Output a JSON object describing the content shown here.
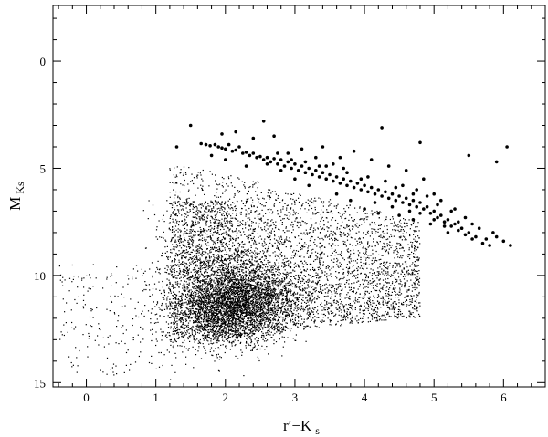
{
  "chart_data": {
    "type": "scatter",
    "title": "",
    "xlabel": "r′−K",
    "xlabel_sub": "s",
    "ylabel": "M",
    "ylabel_sub": "Ks",
    "xlim": [
      -0.48,
      6.6
    ],
    "ylim": [
      15.2,
      -2.6
    ],
    "y_inverted": true,
    "grid": false,
    "legend": "none",
    "x_ticks": [
      0,
      1,
      2,
      3,
      4,
      5,
      6
    ],
    "x_tick_labels": [
      "0",
      "1",
      "2",
      "3",
      "4",
      "5",
      "6"
    ],
    "y_ticks": [
      0,
      5,
      10,
      15
    ],
    "y_tick_labels": [
      "0",
      "5",
      "10",
      "15"
    ],
    "colors": {
      "points": "#000000",
      "axes": "#000000"
    },
    "series": [
      {
        "marker": "large-dot",
        "note_points": "foreground sequence of larger dots",
        "points": [
          [
            1.5,
            3.0
          ],
          [
            1.3,
            4.0
          ],
          [
            1.65,
            3.85
          ],
          [
            1.72,
            3.9
          ],
          [
            1.78,
            3.95
          ],
          [
            1.85,
            3.9
          ],
          [
            1.9,
            4.0
          ],
          [
            1.95,
            4.05
          ],
          [
            2.0,
            4.1
          ],
          [
            2.05,
            3.9
          ],
          [
            2.1,
            4.2
          ],
          [
            2.15,
            4.15
          ],
          [
            2.2,
            4.0
          ],
          [
            2.25,
            4.3
          ],
          [
            2.3,
            4.25
          ],
          [
            2.35,
            4.4
          ],
          [
            2.4,
            4.3
          ],
          [
            2.45,
            4.5
          ],
          [
            2.5,
            4.45
          ],
          [
            2.55,
            2.8
          ],
          [
            2.55,
            4.6
          ],
          [
            2.6,
            4.5
          ],
          [
            2.65,
            4.7
          ],
          [
            2.7,
            4.55
          ],
          [
            2.75,
            4.8
          ],
          [
            2.8,
            4.6
          ],
          [
            2.85,
            4.9
          ],
          [
            2.9,
            4.7
          ],
          [
            2.95,
            5.0
          ],
          [
            3.0,
            4.8
          ],
          [
            3.05,
            5.1
          ],
          [
            3.1,
            4.9
          ],
          [
            3.15,
            5.2
          ],
          [
            3.2,
            5.0
          ],
          [
            3.25,
            5.3
          ],
          [
            3.3,
            5.1
          ],
          [
            3.35,
            5.4
          ],
          [
            3.4,
            5.2
          ],
          [
            3.45,
            5.5
          ],
          [
            3.5,
            5.3
          ],
          [
            3.55,
            5.6
          ],
          [
            3.6,
            5.4
          ],
          [
            3.65,
            5.7
          ],
          [
            3.7,
            5.5
          ],
          [
            3.75,
            5.8
          ],
          [
            3.8,
            5.6
          ],
          [
            3.85,
            5.9
          ],
          [
            3.9,
            5.7
          ],
          [
            3.95,
            6.0
          ],
          [
            4.0,
            5.8
          ],
          [
            4.05,
            6.1
          ],
          [
            4.1,
            5.9
          ],
          [
            4.15,
            6.2
          ],
          [
            4.2,
            6.0
          ],
          [
            4.25,
            6.3
          ],
          [
            4.3,
            6.1
          ],
          [
            4.35,
            6.4
          ],
          [
            4.4,
            6.2
          ],
          [
            4.45,
            6.5
          ],
          [
            4.5,
            6.3
          ],
          [
            4.55,
            6.6
          ],
          [
            4.6,
            6.4
          ],
          [
            4.65,
            6.7
          ],
          [
            4.7,
            6.5
          ],
          [
            4.75,
            6.8
          ],
          [
            4.8,
            6.6
          ],
          [
            4.85,
            6.9
          ],
          [
            4.9,
            6.8
          ],
          [
            4.95,
            7.1
          ],
          [
            5.0,
            7.0
          ],
          [
            5.05,
            7.3
          ],
          [
            5.1,
            7.2
          ],
          [
            5.15,
            7.5
          ],
          [
            5.2,
            7.4
          ],
          [
            5.25,
            7.7
          ],
          [
            5.3,
            7.6
          ],
          [
            5.35,
            7.9
          ],
          [
            5.4,
            7.8
          ],
          [
            5.45,
            8.1
          ],
          [
            5.5,
            8.0
          ],
          [
            5.55,
            8.3
          ],
          [
            5.6,
            8.2
          ],
          [
            5.7,
            8.5
          ],
          [
            5.75,
            8.3
          ],
          [
            5.8,
            8.6
          ],
          [
            5.9,
            8.2
          ],
          [
            6.0,
            8.4
          ],
          [
            6.1,
            8.6
          ],
          [
            6.05,
            4.0
          ],
          [
            5.5,
            4.4
          ],
          [
            5.9,
            4.7
          ],
          [
            4.8,
            3.8
          ],
          [
            4.25,
            3.1
          ],
          [
            3.4,
            4.0
          ],
          [
            2.7,
            3.5
          ],
          [
            2.4,
            3.6
          ],
          [
            2.15,
            3.3
          ],
          [
            1.95,
            3.4
          ],
          [
            3.65,
            4.5
          ],
          [
            3.85,
            4.2
          ],
          [
            4.1,
            4.6
          ],
          [
            4.35,
            4.9
          ],
          [
            4.6,
            5.1
          ],
          [
            4.85,
            5.5
          ],
          [
            5.0,
            6.2
          ],
          [
            5.1,
            6.5
          ],
          [
            5.3,
            6.9
          ],
          [
            3.6,
            6.2
          ],
          [
            3.8,
            6.5
          ],
          [
            4.0,
            6.9
          ],
          [
            4.2,
            7.1
          ],
          [
            4.5,
            7.2
          ],
          [
            4.7,
            7.4
          ],
          [
            4.95,
            7.6
          ],
          [
            5.2,
            8.0
          ],
          [
            3.2,
            5.8
          ],
          [
            3.0,
            5.5
          ],
          [
            2.8,
            5.1
          ],
          [
            2.3,
            4.9
          ],
          [
            2.0,
            4.6
          ],
          [
            1.8,
            4.4
          ],
          [
            2.9,
            4.3
          ],
          [
            3.1,
            4.1
          ],
          [
            3.3,
            4.5
          ],
          [
            3.55,
            4.8
          ],
          [
            3.75,
            5.2
          ],
          [
            4.05,
            5.4
          ],
          [
            4.3,
            5.6
          ],
          [
            4.55,
            5.8
          ],
          [
            4.75,
            6.0
          ],
          [
            4.9,
            6.3
          ],
          [
            5.05,
            6.7
          ],
          [
            5.25,
            7.0
          ],
          [
            5.45,
            7.3
          ],
          [
            5.65,
            7.8
          ],
          [
            5.85,
            8.0
          ],
          [
            4.15,
            6.6
          ],
          [
            4.4,
            6.8
          ],
          [
            4.65,
            7.0
          ],
          [
            4.8,
            7.1
          ],
          [
            5.0,
            7.4
          ],
          [
            5.15,
            7.7
          ],
          [
            5.35,
            7.5
          ],
          [
            5.55,
            7.6
          ],
          [
            3.95,
            5.5
          ],
          [
            4.45,
            5.9
          ],
          [
            4.7,
            6.2
          ],
          [
            3.45,
            4.9
          ],
          [
            3.7,
            5.0
          ],
          [
            2.6,
            4.8
          ],
          [
            2.75,
            4.3
          ],
          [
            2.95,
            4.6
          ],
          [
            3.15,
            4.7
          ],
          [
            3.35,
            4.9
          ]
        ]
      },
      {
        "marker": "small-dot",
        "note_points": "dense background field of small dots; positions drawn procedurally from the cloud envelope"
      }
    ]
  }
}
